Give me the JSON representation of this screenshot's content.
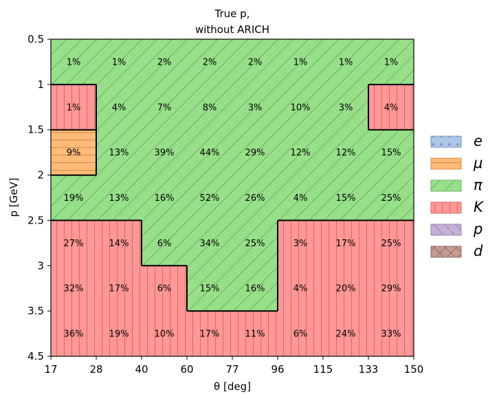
{
  "chart_data": {
    "type": "heatmap",
    "title_line1": "True p,",
    "title_line2": "without ARICH",
    "xlabel": "θ [deg]",
    "ylabel": "p [GeV]",
    "x_ticks": [
      "17",
      "28",
      "40",
      "60",
      "77",
      "96",
      "115",
      "133",
      "150"
    ],
    "y_ticks": [
      "0.5",
      "1",
      "1.5",
      "2",
      "2.5",
      "3",
      "3.5",
      "4.5"
    ],
    "legend": [
      {
        "label": "e",
        "color": "#aec7e8",
        "hatch": "dots",
        "hatch_color": "#6f8fbf"
      },
      {
        "label": "μ",
        "color": "#ffbb78",
        "hatch": "horizontal",
        "hatch_color": "#d9894a"
      },
      {
        "label": "π",
        "color": "#98df8a",
        "hatch": "diagonal",
        "hatch_color": "#6fb35f"
      },
      {
        "label": "K",
        "color": "#ff9896",
        "hatch": "vertical",
        "hatch_color": "#d46a68"
      },
      {
        "label": "p",
        "color": "#c5b0d5",
        "hatch": "backslash",
        "hatch_color": "#9a82ad"
      },
      {
        "label": "d",
        "color": "#c49c94",
        "hatch": "cross",
        "hatch_color": "#946d66"
      }
    ],
    "legend_position": "right",
    "particle_map": [
      [
        "π",
        "π",
        "π",
        "π",
        "π",
        "π",
        "π",
        "π"
      ],
      [
        "K",
        "π",
        "π",
        "π",
        "π",
        "π",
        "π",
        "K"
      ],
      [
        "μ",
        "π",
        "π",
        "π",
        "π",
        "π",
        "π",
        "π"
      ],
      [
        "π",
        "π",
        "π",
        "π",
        "π",
        "π",
        "π",
        "π"
      ],
      [
        "K",
        "K",
        "π",
        "π",
        "π",
        "K",
        "K",
        "K"
      ],
      [
        "K",
        "K",
        "K",
        "π",
        "π",
        "K",
        "K",
        "K"
      ],
      [
        "K",
        "K",
        "K",
        "K",
        "K",
        "K",
        "K",
        "K"
      ]
    ],
    "values": [
      [
        "1%",
        "1%",
        "2%",
        "2%",
        "2%",
        "1%",
        "1%",
        "1%"
      ],
      [
        "1%",
        "4%",
        "7%",
        "8%",
        "3%",
        "10%",
        "3%",
        "4%"
      ],
      [
        "9%",
        "13%",
        "39%",
        "44%",
        "29%",
        "12%",
        "12%",
        "15%"
      ],
      [
        "19%",
        "13%",
        "16%",
        "52%",
        "26%",
        "4%",
        "15%",
        "25%"
      ],
      [
        "27%",
        "14%",
        "6%",
        "34%",
        "25%",
        "3%",
        "17%",
        "25%"
      ],
      [
        "32%",
        "17%",
        "6%",
        "15%",
        "16%",
        "4%",
        "20%",
        "29%"
      ],
      [
        "36%",
        "19%",
        "10%",
        "17%",
        "11%",
        "6%",
        "24%",
        "33%"
      ]
    ]
  }
}
